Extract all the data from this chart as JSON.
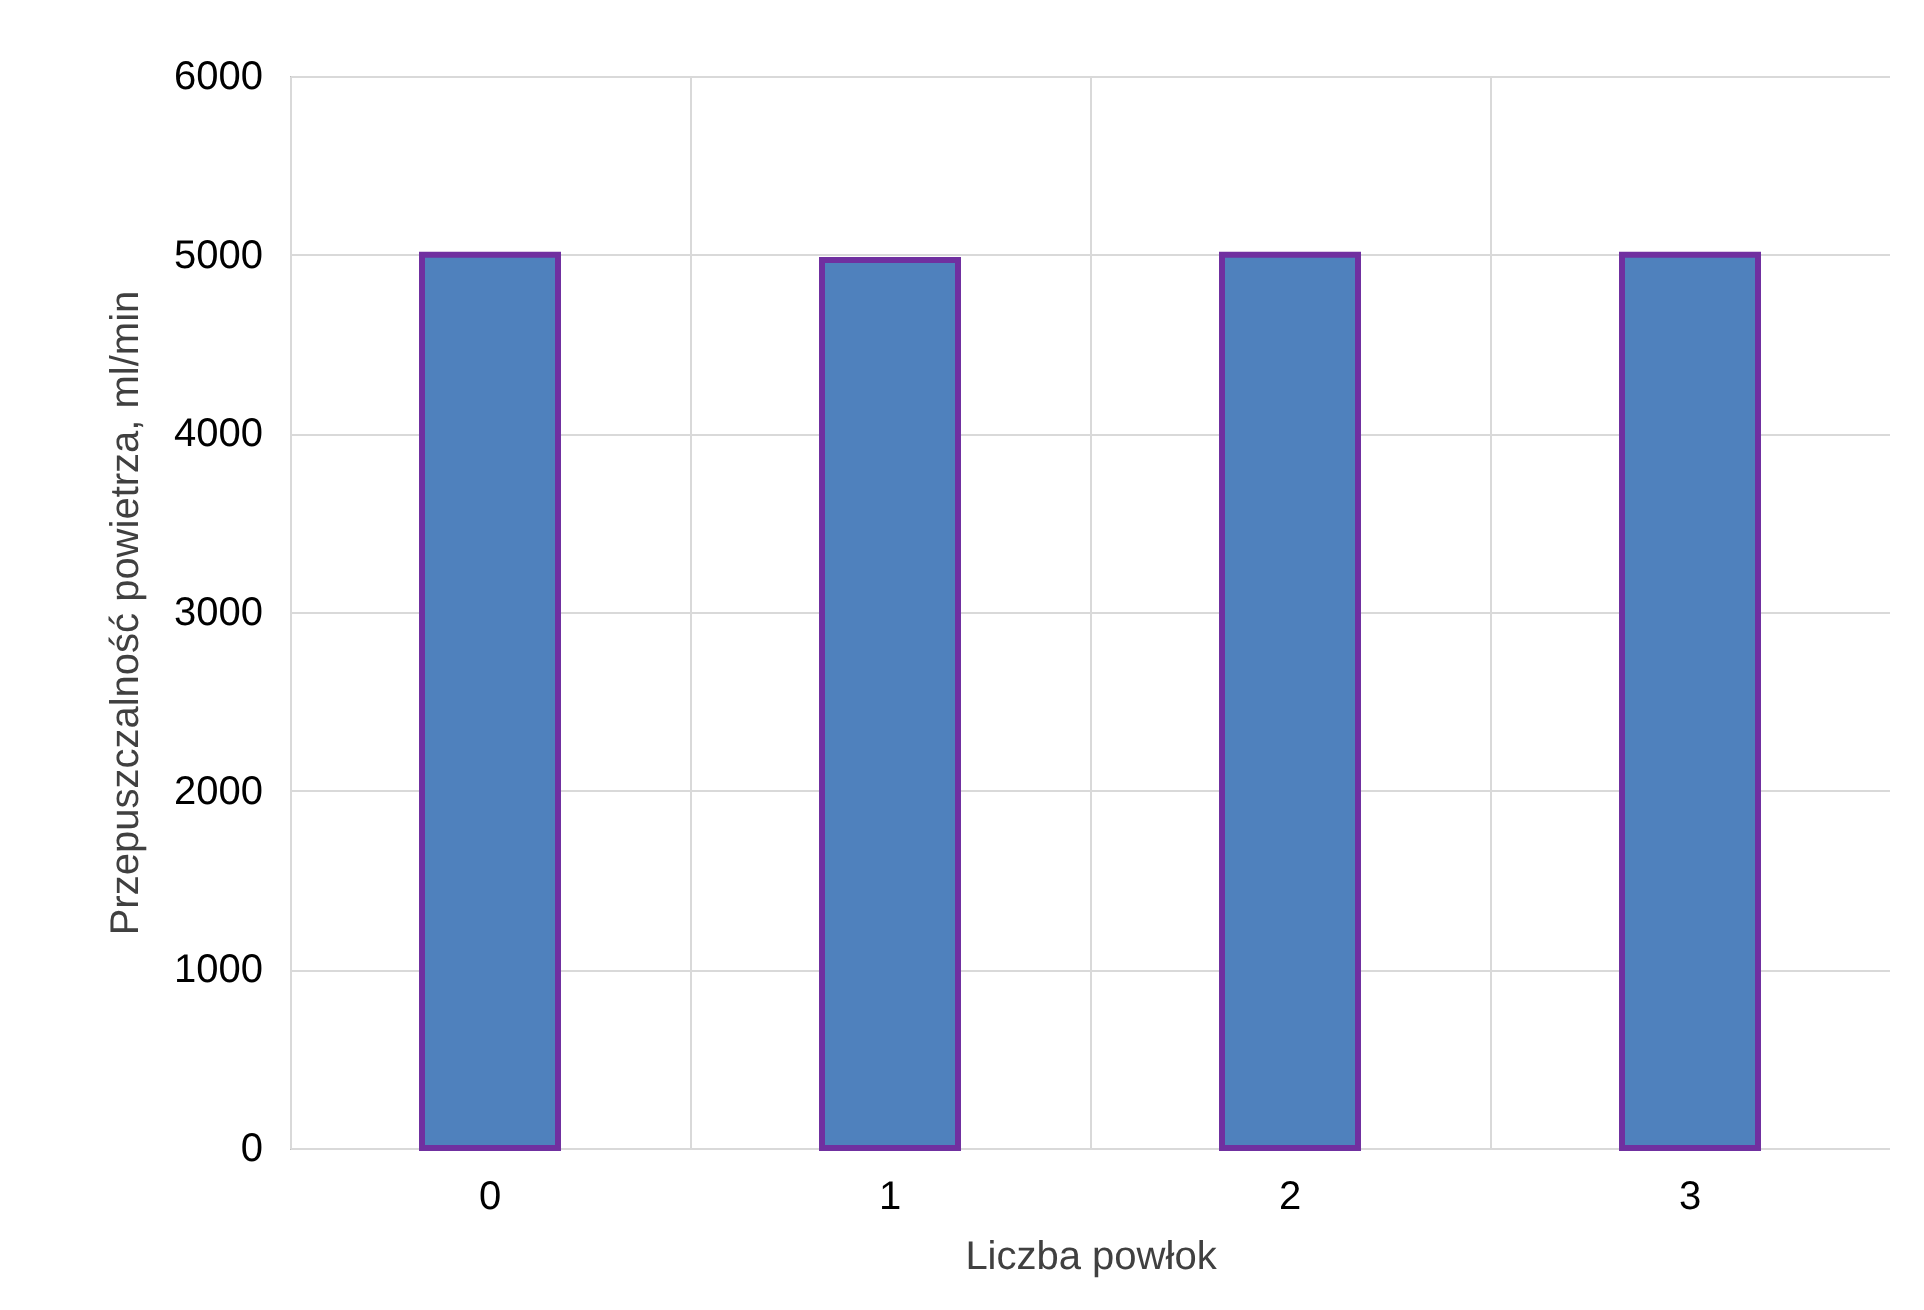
{
  "chart_data": {
    "type": "bar",
    "xlabel": "Liczba powłok",
    "ylabel": "Przepuszczalność powietrza, ml/min",
    "categories": [
      "0",
      "1",
      "2",
      "3"
    ],
    "values": [
      5000,
      4970,
      5000,
      5000
    ],
    "color": "#4f81bd",
    "ylim": [
      0,
      6000
    ],
    "yticks": [
      0,
      1000,
      2000,
      3000,
      4000,
      5000,
      6000
    ],
    "grid": true
  }
}
